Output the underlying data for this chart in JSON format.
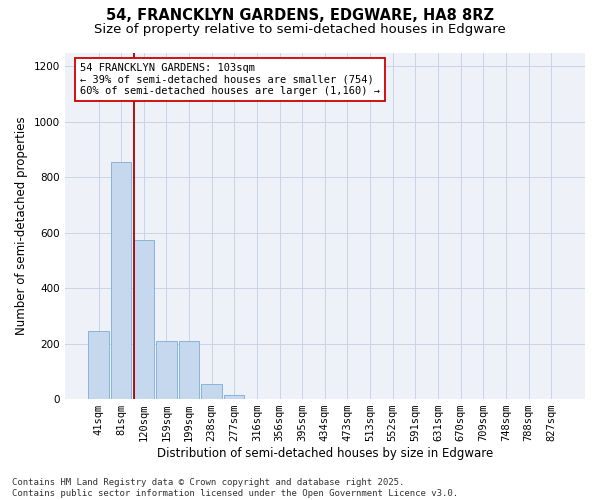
{
  "title1": "54, FRANCKLYN GARDENS, EDGWARE, HA8 8RZ",
  "title2": "Size of property relative to semi-detached houses in Edgware",
  "xlabel": "Distribution of semi-detached houses by size in Edgware",
  "ylabel": "Number of semi-detached properties",
  "categories": [
    "41sqm",
    "81sqm",
    "120sqm",
    "159sqm",
    "199sqm",
    "238sqm",
    "277sqm",
    "316sqm",
    "356sqm",
    "395sqm",
    "434sqm",
    "473sqm",
    "513sqm",
    "552sqm",
    "591sqm",
    "631sqm",
    "670sqm",
    "709sqm",
    "748sqm",
    "788sqm",
    "827sqm"
  ],
  "values": [
    245,
    855,
    575,
    210,
    210,
    55,
    15,
    0,
    0,
    0,
    0,
    0,
    0,
    0,
    0,
    0,
    0,
    0,
    0,
    0,
    0
  ],
  "bar_color": "#c5d8ee",
  "bar_edge_color": "#7aadd4",
  "grid_color": "#c8d4e8",
  "vline_color": "#aa0000",
  "annotation_text": "54 FRANCKLYN GARDENS: 103sqm\n← 39% of semi-detached houses are smaller (754)\n60% of semi-detached houses are larger (1,160) →",
  "annotation_box_color": "#ffffff",
  "annotation_box_edge": "#cc0000",
  "ylim": [
    0,
    1250
  ],
  "yticks": [
    0,
    200,
    400,
    600,
    800,
    1000,
    1200
  ],
  "footnote": "Contains HM Land Registry data © Crown copyright and database right 2025.\nContains public sector information licensed under the Open Government Licence v3.0.",
  "title1_fontsize": 10.5,
  "title2_fontsize": 9.5,
  "xlabel_fontsize": 8.5,
  "ylabel_fontsize": 8.5,
  "tick_fontsize": 7.5,
  "annotation_fontsize": 7.5,
  "footnote_fontsize": 6.5
}
